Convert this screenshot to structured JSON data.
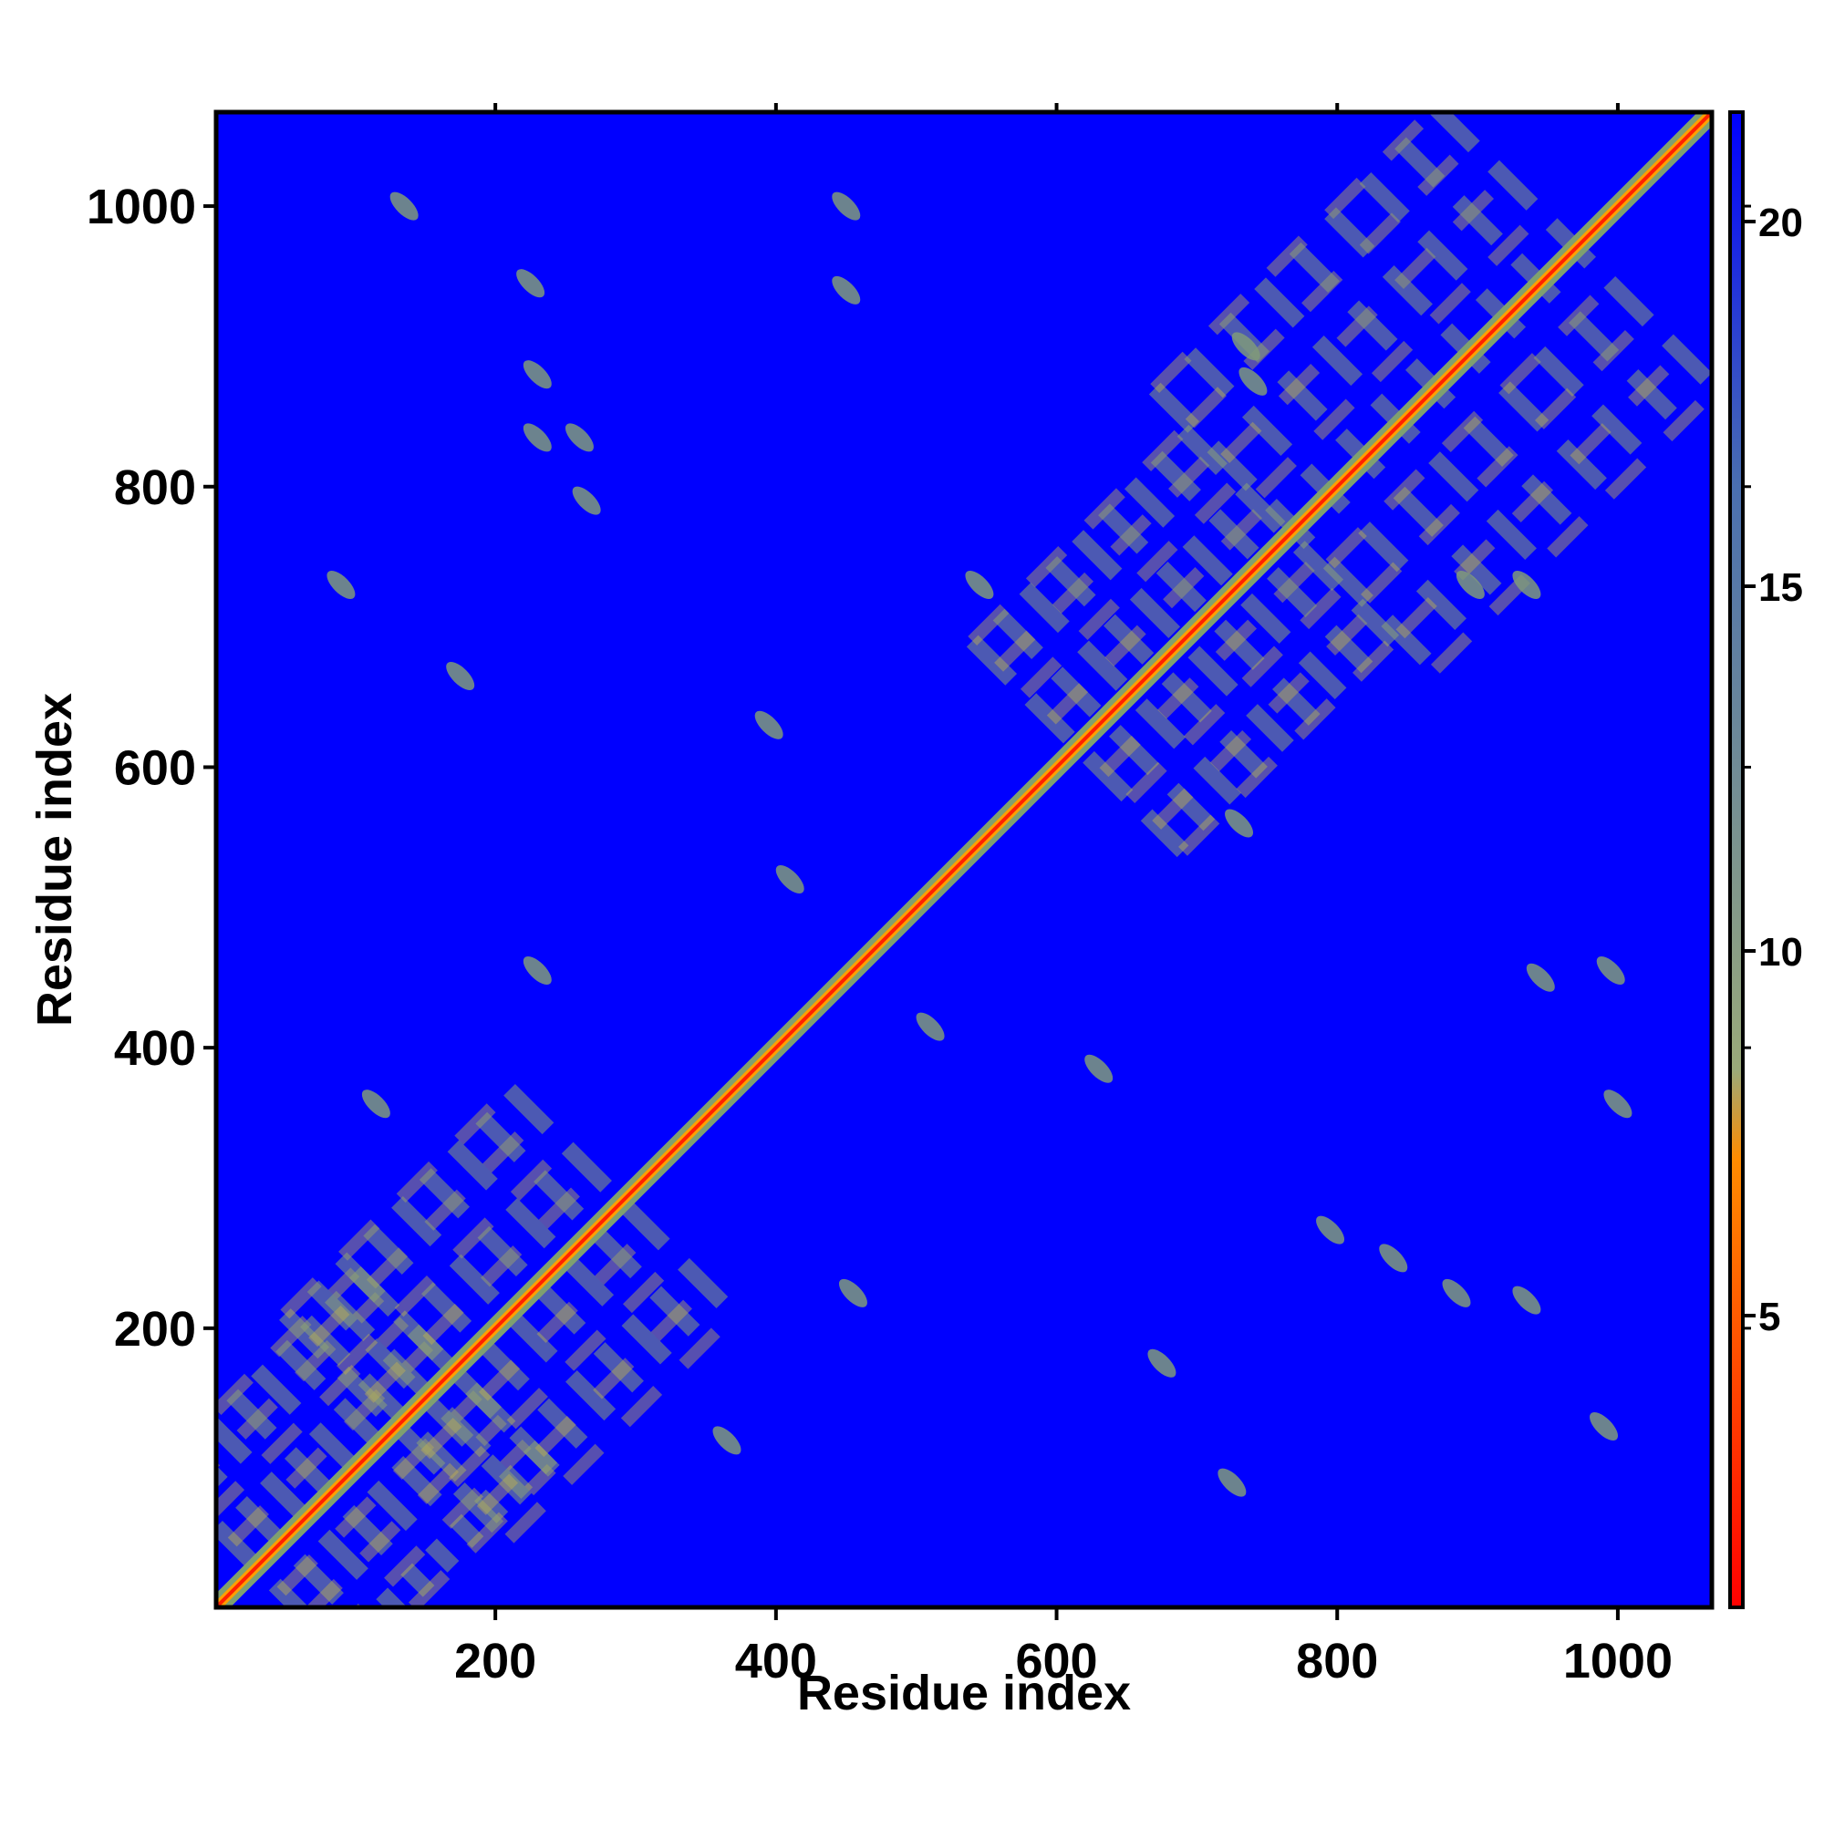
{
  "chart_data": {
    "type": "heatmap",
    "title": "",
    "xlabel": "Residue index",
    "ylabel": "Residue index",
    "xlim": [
      1,
      1067
    ],
    "ylim": [
      1,
      1067
    ],
    "x_ticks": [
      200,
      400,
      600,
      800,
      1000
    ],
    "y_ticks": [
      200,
      400,
      600,
      800,
      1000
    ],
    "x_tick_labels": [
      "200",
      "400",
      "600",
      "800",
      "1000"
    ],
    "y_tick_labels": [
      "200",
      "400",
      "600",
      "800",
      "1000"
    ],
    "colorbar": {
      "range": [
        1,
        21.5
      ],
      "ticks": [
        5,
        10,
        15,
        20
      ],
      "tick_labels": [
        "5",
        "10",
        "15",
        "20"
      ],
      "colors": [
        "#ff0000",
        "#ff8c00",
        "#9aaa7a",
        "#4a6fb0",
        "#0000ff"
      ]
    },
    "background_color": "#0000ff",
    "diagonal": {
      "from": 1,
      "to": 1067,
      "color": "#ff2200",
      "halo_color": "#7fa070"
    },
    "domains": [
      {
        "name": "",
        "center": [
          100,
          100
        ],
        "half_size": 70
      },
      {
        "name": "",
        "center": [
          210,
          210
        ],
        "half_size": 80
      },
      {
        "name": "",
        "center": [
          690,
          690
        ],
        "half_size": 75
      },
      {
        "name": "",
        "center": [
          870,
          870
        ],
        "half_size": 100
      }
    ],
    "contacts": [
      {
        "x": 135,
        "y": 1000
      },
      {
        "x": 450,
        "y": 1000
      },
      {
        "x": 225,
        "y": 945
      },
      {
        "x": 450,
        "y": 940
      },
      {
        "x": 230,
        "y": 880
      },
      {
        "x": 230,
        "y": 835
      },
      {
        "x": 260,
        "y": 835
      },
      {
        "x": 265,
        "y": 790
      },
      {
        "x": 90,
        "y": 730
      },
      {
        "x": 175,
        "y": 665
      },
      {
        "x": 395,
        "y": 630
      },
      {
        "x": 545,
        "y": 730
      },
      {
        "x": 410,
        "y": 520
      },
      {
        "x": 230,
        "y": 455
      },
      {
        "x": 115,
        "y": 360
      },
      {
        "x": 510,
        "y": 415
      },
      {
        "x": 630,
        "y": 385
      },
      {
        "x": 730,
        "y": 560
      },
      {
        "x": 945,
        "y": 450
      },
      {
        "x": 995,
        "y": 455
      },
      {
        "x": 1000,
        "y": 360
      },
      {
        "x": 795,
        "y": 270
      },
      {
        "x": 840,
        "y": 250
      },
      {
        "x": 885,
        "y": 225
      },
      {
        "x": 935,
        "y": 220
      },
      {
        "x": 675,
        "y": 175
      },
      {
        "x": 990,
        "y": 130
      },
      {
        "x": 725,
        "y": 90
      },
      {
        "x": 455,
        "y": 225
      },
      {
        "x": 365,
        "y": 120
      },
      {
        "x": 895,
        "y": 730
      },
      {
        "x": 935,
        "y": 730
      },
      {
        "x": 735,
        "y": 900
      },
      {
        "x": 740,
        "y": 875
      }
    ]
  }
}
